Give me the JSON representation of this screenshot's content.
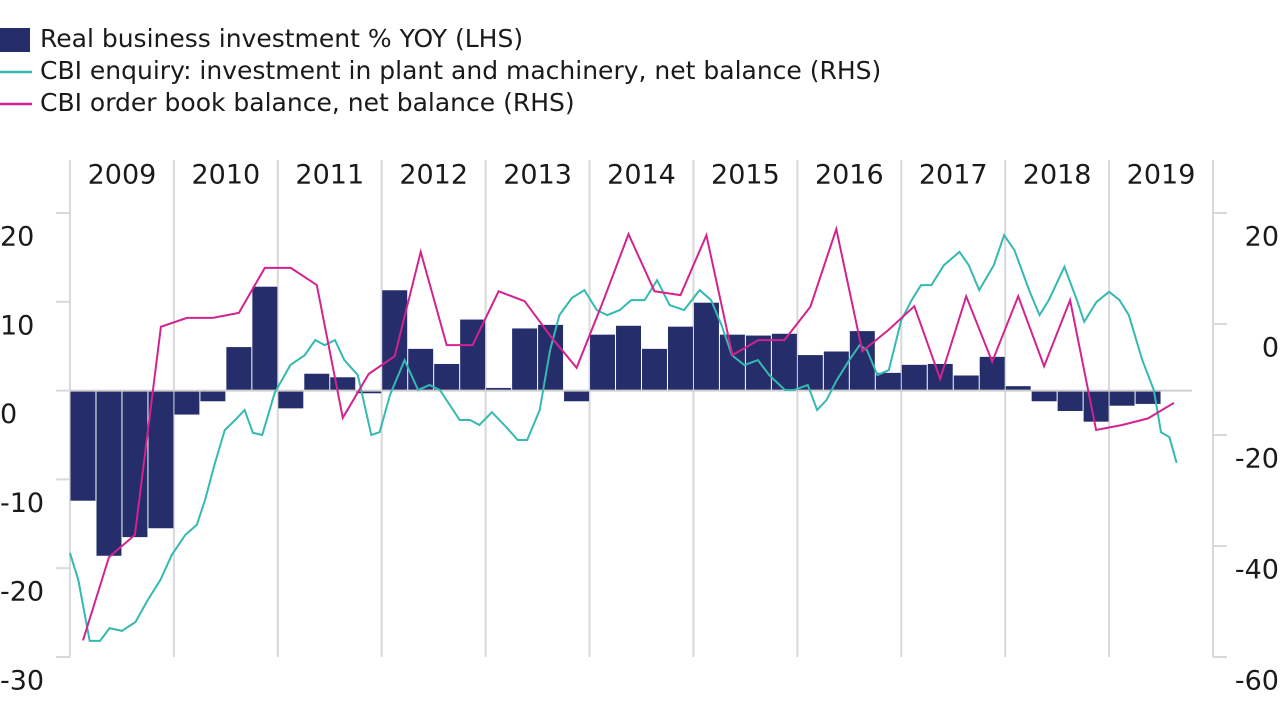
{
  "chart_data": {
    "type": "bar",
    "xlim": [
      2009,
      2020
    ],
    "xticks": [
      2009,
      2010,
      2011,
      2012,
      2013,
      2014,
      2015,
      2016,
      2017,
      2018,
      2019
    ],
    "ylim": [
      -30,
      20
    ],
    "yticks": [
      -30,
      -20,
      -10,
      0,
      10,
      20
    ],
    "y2lim": [
      -60,
      20
    ],
    "y2ticks": [
      -60,
      -40,
      -20,
      0,
      20
    ],
    "grid": true,
    "legend": "top-left",
    "series": [
      {
        "name": "Real business investment % YOY (LHS)",
        "color": "#262d6b",
        "type": "bar",
        "x": [
          2009.125,
          2009.375,
          2009.625,
          2009.875,
          2010.125,
          2010.375,
          2010.625,
          2010.875,
          2011.125,
          2011.375,
          2011.625,
          2011.875,
          2012.125,
          2012.375,
          2012.625,
          2012.875,
          2013.125,
          2013.375,
          2013.625,
          2013.875,
          2014.125,
          2014.375,
          2014.625,
          2014.875,
          2015.125,
          2015.375,
          2015.625,
          2015.875,
          2016.125,
          2016.375,
          2016.625,
          2016.875,
          2017.125,
          2017.375,
          2017.625,
          2017.875,
          2018.125,
          2018.375,
          2018.625,
          2018.875,
          2019.125,
          2019.375
        ],
        "values": [
          -12.4,
          -18.6,
          -16.5,
          -15.5,
          -2.7,
          -1.2,
          4.9,
          11.7,
          -2.0,
          1.9,
          1.5,
          -0.3,
          11.3,
          4.7,
          3.0,
          8.0,
          0.3,
          7.0,
          7.4,
          -1.2,
          6.3,
          7.3,
          4.7,
          7.2,
          9.9,
          6.3,
          6.2,
          6.4,
          4.0,
          4.4,
          6.7,
          2.0,
          2.9,
          3.0,
          1.7,
          3.8,
          0.5,
          -1.2,
          -2.3,
          -3.5,
          -1.7,
          -1.5
        ]
      },
      {
        "name": "CBI enquiry: investment in plant and machinery, net balance (RHS)",
        "color": "#35b9b0",
        "type": "line",
        "axis": "y2",
        "x": [
          2009.0,
          2009.08,
          2009.19,
          2009.29,
          2009.38,
          2009.5,
          2009.63,
          2009.75,
          2009.87,
          2009.98,
          2010.11,
          2010.22,
          2010.3,
          2010.39,
          2010.49,
          2010.59,
          2010.68,
          2010.76,
          2010.85,
          2010.97,
          2011.12,
          2011.26,
          2011.36,
          2011.45,
          2011.55,
          2011.64,
          2011.77,
          2011.9,
          2011.98,
          2012.08,
          2012.22,
          2012.35,
          2012.46,
          2012.56,
          2012.75,
          2012.85,
          2012.94,
          2013.06,
          2013.18,
          2013.31,
          2013.4,
          2013.52,
          2013.62,
          2013.71,
          2013.83,
          2013.95,
          2014.07,
          2014.17,
          2014.29,
          2014.4,
          2014.53,
          2014.65,
          2014.77,
          2014.91,
          2015.06,
          2015.17,
          2015.27,
          2015.37,
          2015.49,
          2015.62,
          2015.73,
          2015.88,
          2015.97,
          2016.1,
          2016.19,
          2016.28,
          2016.38,
          2016.5,
          2016.6,
          2016.67,
          2016.77,
          2016.88,
          2017.0,
          2017.1,
          2017.19,
          2017.29,
          2017.41,
          2017.56,
          2017.65,
          2017.75,
          2017.89,
          2017.99,
          2018.09,
          2018.23,
          2018.33,
          2018.42,
          2018.57,
          2018.69,
          2018.76,
          2018.88,
          2019.0,
          2019.1,
          2019.19,
          2019.32,
          2019.43,
          2019.5,
          2019.58,
          2019.65
        ],
        "values": [
          -41.3,
          -46.1,
          -57.1,
          -57.1,
          -54.8,
          -55.3,
          -53.7,
          -49.7,
          -46.1,
          -41.6,
          -38.0,
          -36.2,
          -31.7,
          -25.4,
          -19.1,
          -17.3,
          -15.5,
          -19.6,
          -20.0,
          -12.4,
          -7.4,
          -5.6,
          -2.9,
          -3.8,
          -2.9,
          -6.5,
          -9.2,
          -20.0,
          -19.5,
          -12.8,
          -6.5,
          -11.9,
          -11.0,
          -11.9,
          -17.3,
          -17.3,
          -18.2,
          -15.9,
          -18.2,
          -20.9,
          -20.9,
          -15.5,
          -4.7,
          1.6,
          4.7,
          6.1,
          2.5,
          1.6,
          2.5,
          4.3,
          4.3,
          7.9,
          3.4,
          2.5,
          6.1,
          4.3,
          -0.2,
          -5.6,
          -7.4,
          -6.5,
          -9.2,
          -11.9,
          -11.9,
          -11.0,
          -15.5,
          -13.7,
          -10.1,
          -6.5,
          -3.8,
          -4.7,
          -9.2,
          -8.3,
          0.7,
          4.3,
          7.0,
          7.0,
          10.6,
          13.0,
          10.6,
          6.1,
          10.6,
          16.0,
          13.3,
          6.1,
          1.6,
          4.3,
          10.3,
          4.3,
          0.4,
          4.0,
          5.8,
          4.3,
          1.6,
          -6.5,
          -11.9,
          -19.5,
          -20.4,
          -25.0
        ]
      },
      {
        "name": "CBI order book balance, net balance (RHS)",
        "color": "#d2238e",
        "type": "line",
        "axis": "y2",
        "x": [
          2009.125,
          2009.375,
          2009.625,
          2009.875,
          2010.125,
          2010.375,
          2010.625,
          2010.875,
          2011.125,
          2011.375,
          2011.625,
          2011.875,
          2012.125,
          2012.375,
          2012.625,
          2012.875,
          2013.125,
          2013.375,
          2013.625,
          2013.875,
          2014.125,
          2014.375,
          2014.625,
          2014.875,
          2015.125,
          2015.375,
          2015.625,
          2015.875,
          2016.125,
          2016.375,
          2016.625,
          2016.875,
          2017.125,
          2017.375,
          2017.625,
          2017.875,
          2018.125,
          2018.375,
          2018.625,
          2018.875,
          2019.125,
          2019.375,
          2019.625
        ],
        "values": [
          -57,
          -42,
          -38,
          -0.5,
          1.1,
          1.1,
          2.0,
          10.1,
          10.1,
          7.0,
          -16.9,
          -9.0,
          -5.8,
          13.0,
          -3.8,
          -3.8,
          5.9,
          4.1,
          -2.2,
          -7.9,
          3.8,
          16.2,
          5.9,
          5.2,
          16.0,
          -5.6,
          -2.9,
          -2.9,
          3.1,
          17.1,
          -4.9,
          -1.1,
          3.2,
          -9.9,
          5.0,
          -6.8,
          5.0,
          -7.6,
          4.3,
          -19.1,
          -18.2,
          -17.0,
          -14.2
        ]
      }
    ]
  }
}
